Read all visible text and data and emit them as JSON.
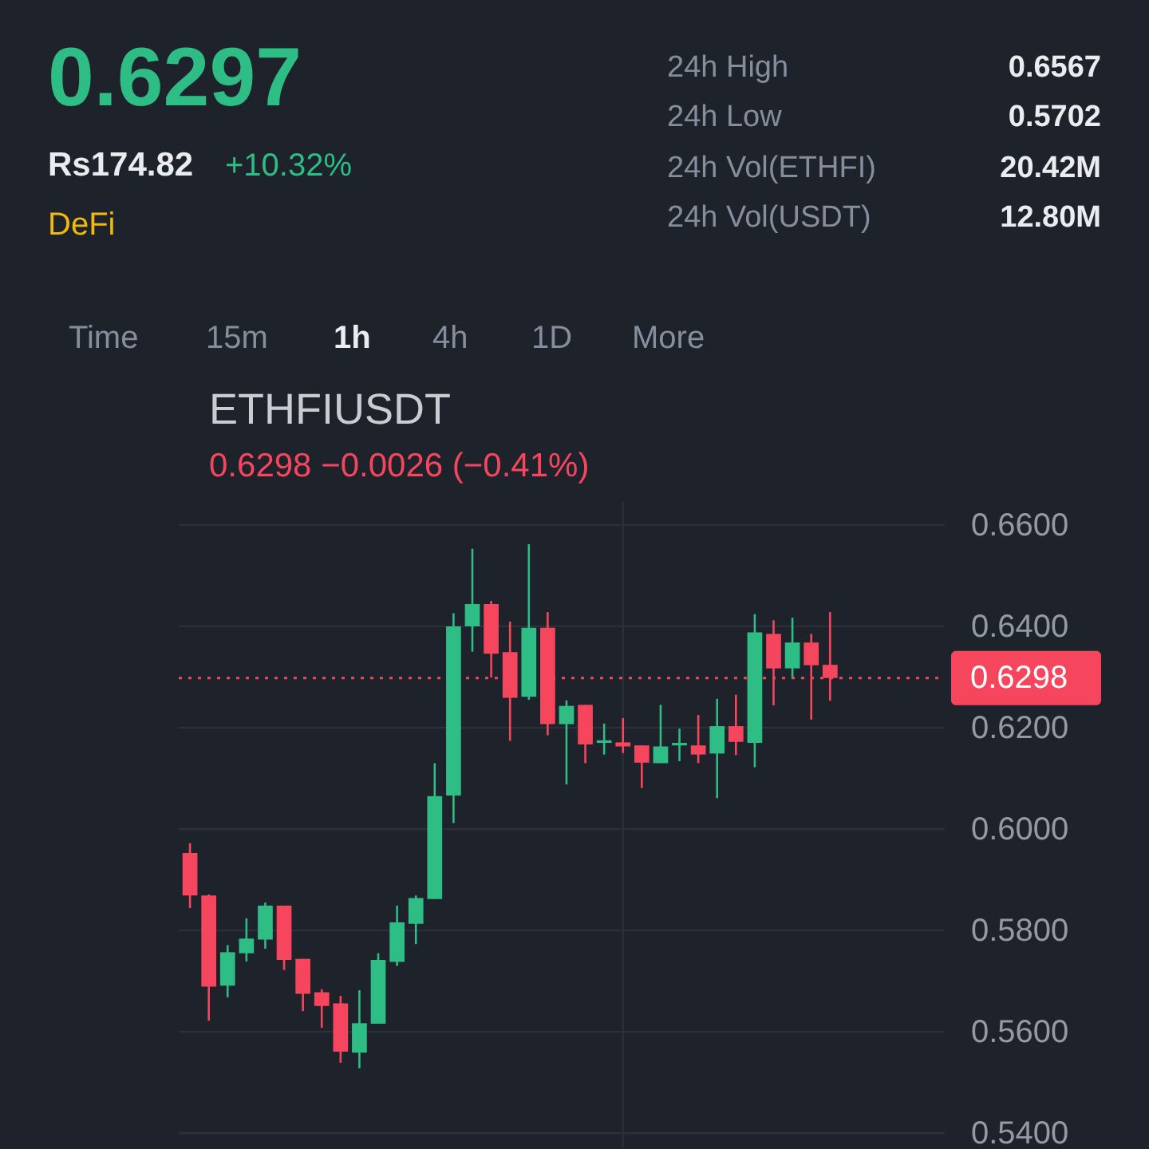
{
  "chart_data": [
    {
      "type": "other",
      "annotations": [
        "0.6297",
        "Rs174.82",
        "+10.32%",
        "DeFi",
        "24h High",
        "0.6567",
        "24h Low",
        "0.5702",
        "24h Vol(ETHFI)",
        "20.42M",
        "24h Vol(USDT)",
        "12.80M",
        "Time",
        "15m",
        "1h",
        "4h",
        "1D",
        "More"
      ]
    },
    {
      "type": "candlestick",
      "title": "ETHFIUSDT",
      "subtitle": "0.6298 −0.0026 (−0.41%)",
      "categories": [
        null,
        null,
        null,
        null,
        null,
        null,
        null,
        null,
        null,
        null,
        null,
        null,
        null,
        null,
        null,
        null,
        null,
        null,
        null,
        null,
        null,
        null,
        null,
        null,
        null,
        null,
        null,
        null,
        null,
        null,
        null,
        null,
        null,
        null,
        null
      ],
      "ohlc": [
        [
          0.5953,
          0.5972,
          0.5844,
          0.5869
        ],
        [
          0.5869,
          0.5871,
          0.5622,
          0.5689
        ],
        [
          0.5691,
          0.5771,
          0.5668,
          0.5757
        ],
        [
          0.5755,
          0.5824,
          0.5739,
          0.5784
        ],
        [
          0.5782,
          0.5855,
          0.5764,
          0.5849
        ],
        [
          0.5849,
          0.5849,
          0.5722,
          0.5742
        ],
        [
          0.5744,
          0.5744,
          0.5641,
          0.5675
        ],
        [
          0.5678,
          0.5684,
          0.5608,
          0.5651
        ],
        [
          0.5656,
          0.5671,
          0.5539,
          0.5561
        ],
        [
          0.5559,
          0.5682,
          0.5528,
          0.5617
        ],
        [
          0.5616,
          0.5755,
          0.5616,
          0.5742
        ],
        [
          0.5738,
          0.5849,
          0.573,
          0.5816
        ],
        [
          0.5813,
          0.5869,
          0.5773,
          0.5864
        ],
        [
          0.5862,
          0.613,
          0.5862,
          0.6065
        ],
        [
          0.6066,
          0.6426,
          0.6012,
          0.64
        ],
        [
          0.64,
          0.6553,
          0.635,
          0.6444
        ],
        [
          0.6444,
          0.645,
          0.6299,
          0.6346
        ],
        [
          0.6349,
          0.6409,
          0.6174,
          0.6259
        ],
        [
          0.6261,
          0.6562,
          0.6255,
          0.6397
        ],
        [
          0.6397,
          0.6428,
          0.6185,
          0.6207
        ],
        [
          0.6207,
          0.6254,
          0.6088,
          0.6243
        ],
        [
          0.6245,
          0.6245,
          0.613,
          0.6167
        ],
        [
          0.617,
          0.6208,
          0.6147,
          0.6175
        ],
        [
          0.6171,
          0.6219,
          0.615,
          0.6163
        ],
        [
          0.6165,
          0.6165,
          0.6081,
          0.6131
        ],
        [
          0.613,
          0.6245,
          0.613,
          0.6163
        ],
        [
          0.6165,
          0.6198,
          0.6134,
          0.617
        ],
        [
          0.6165,
          0.6225,
          0.613,
          0.6147
        ],
        [
          0.6149,
          0.6257,
          0.6061,
          0.6203
        ],
        [
          0.6203,
          0.6265,
          0.6146,
          0.6172
        ],
        [
          0.617,
          0.6424,
          0.6122,
          0.6388
        ],
        [
          0.6385,
          0.6412,
          0.6244,
          0.6317
        ],
        [
          0.6317,
          0.6417,
          0.6299,
          0.6368
        ],
        [
          0.6368,
          0.6385,
          0.6216,
          0.6323
        ],
        [
          0.6324,
          0.6428,
          0.6253,
          0.6298
        ]
      ],
      "colors": [
        "#f6465d",
        "#f6465d",
        "#2ebd85",
        "#2ebd85",
        "#2ebd85",
        "#f6465d",
        "#f6465d",
        "#f6465d",
        "#f6465d",
        "#2ebd85",
        "#2ebd85",
        "#2ebd85",
        "#2ebd85",
        "#2ebd85",
        "#2ebd85",
        "#2ebd85",
        "#f6465d",
        "#f6465d",
        "#2ebd85",
        "#f6465d",
        "#2ebd85",
        "#f6465d",
        "#2ebd85",
        "#f6465d",
        "#f6465d",
        "#2ebd85",
        "#2ebd85",
        "#f6465d",
        "#2ebd85",
        "#f6465d",
        "#2ebd85",
        "#f6465d",
        "#2ebd85",
        "#f6465d",
        "#f6465d"
      ],
      "ylim": [
        0.5372,
        0.6647
      ],
      "yticks": [
        {
          "value": 0.54,
          "label": "0.5400"
        },
        {
          "value": 0.56,
          "label": "0.5600"
        },
        {
          "value": 0.58,
          "label": "0.5800"
        },
        {
          "value": 0.6,
          "label": "0.6000"
        },
        {
          "value": 0.62,
          "label": "0.6200"
        },
        {
          "value": 0.64,
          "label": "0.6400"
        },
        {
          "value": 0.66,
          "label": "0.6600"
        }
      ],
      "grid": "y",
      "tick_labels": "y",
      "ref_lines": [
        {
          "axis": "y",
          "value": 0.6298,
          "label": "0.6298",
          "color": "#f6465d",
          "line_style": "dotted"
        }
      ]
    }
  ]
}
